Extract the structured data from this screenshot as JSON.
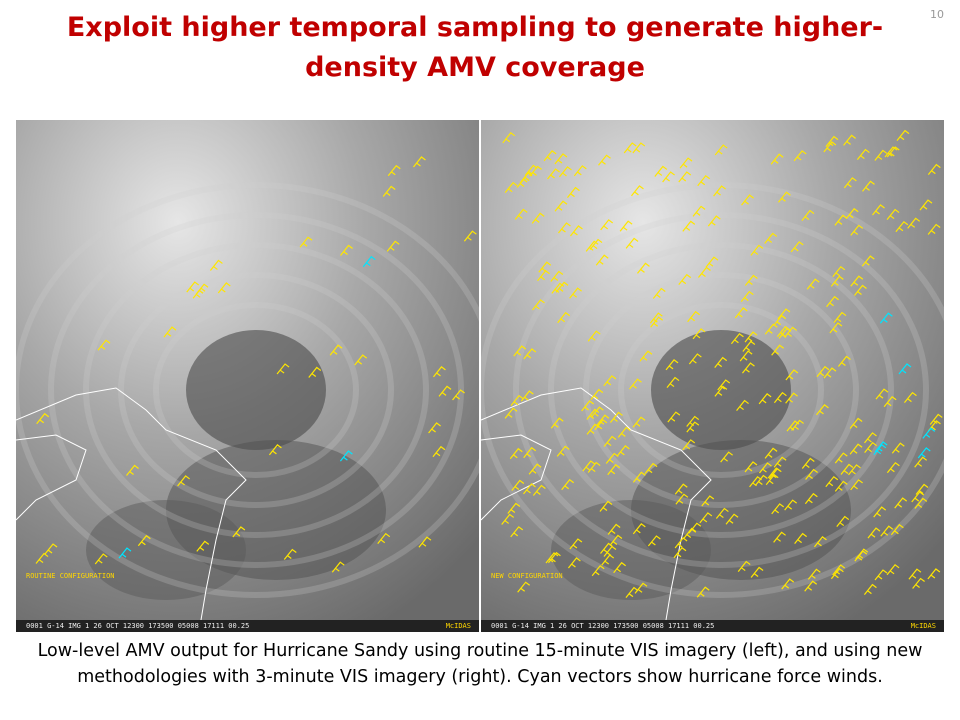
{
  "slide_number": "10",
  "title": "Exploit higher temporal sampling to generate higher-density AMV coverage",
  "panels": [
    {
      "label": "ROUTINE CONFIGURATION",
      "footer": "0001 G-14 IMG   1 26 OCT 12300 173500 05008 17111 00.25",
      "source": "McIDAS"
    },
    {
      "label": "NEW CONFIGURATION",
      "footer": "0001 G-14 IMG   1 26 OCT 12300 173500 05008 17111 00.25",
      "source": "McIDAS"
    }
  ],
  "caption": "Low-level AMV output for Hurricane Sandy using routine 15-minute VIS imagery (left), and using new methodologies with 3-minute VIS imagery (right). Cyan vectors show hurricane force winds."
}
